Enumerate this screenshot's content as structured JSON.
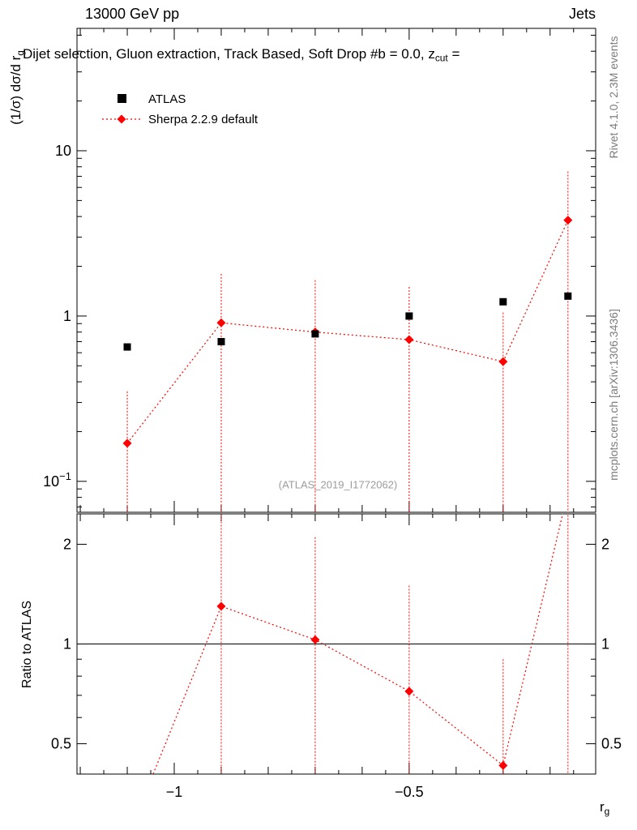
{
  "header": {
    "left": "13000 GeV pp",
    "right": "Jets"
  },
  "title": {
    "pre": "Dijet selection, Gluon extraction, Track Based, Soft Drop #b = 0.0, z",
    "sub": "cut",
    "post": " ="
  },
  "right_margin": {
    "top": "Rivet 4.1.0,  2.3M events",
    "bottom": "mcplots.cern.ch [arXiv:1306.3436]"
  },
  "watermark": "(ATLAS_2019_I1772062)",
  "axes": {
    "main_ylabel": {
      "main": "(1/σ) dσ/d r",
      "sub": "g"
    },
    "ratio_ylabel": "Ratio to ATLAS",
    "xlabel": {
      "main": "r",
      "sub": "g"
    }
  },
  "legend": [
    {
      "label": "ATLAS",
      "marker": "square",
      "color": "#000000"
    },
    {
      "label": "Sherpa 2.2.9 default",
      "marker": "diamond",
      "color": "#ff0000",
      "linestyle": "dotted"
    }
  ],
  "colors": {
    "data": "#000000",
    "mc": "#ff0000",
    "gray_text": "#7b7b7b",
    "watermark": "#9c9c9c"
  },
  "chart_data": {
    "type": "line",
    "title": "Dijet selection, Gluon extraction, Track Based, Soft Drop #b = 0.0, z_cut =",
    "xlabel": "r_g",
    "ylabel": "(1/sigma) dsigma/d r_g",
    "legend_position": "top-left",
    "grid": false,
    "xlim": [
      -1.207,
      -0.103
    ],
    "x": [
      -1.1,
      -0.9,
      -0.7,
      -0.5,
      -0.3,
      -0.162
    ],
    "xticks": [
      {
        "v": -1,
        "label": "−1"
      },
      {
        "v": -0.5,
        "label": "−0.5"
      }
    ],
    "main_panel": {
      "yscale": "log",
      "ylim": [
        0.065,
        55
      ],
      "yticks": [
        {
          "v": 10,
          "label": "10"
        },
        {
          "v": 1,
          "label": "1"
        },
        {
          "v": 0.1,
          "label": "10",
          "sup": "−1"
        }
      ],
      "series": [
        {
          "name": "ATLAS",
          "marker": "square",
          "color": "#000000",
          "values": [
            0.65,
            0.7,
            0.78,
            1.0,
            1.22,
            1.32
          ]
        },
        {
          "name": "Sherpa 2.2.9 default",
          "marker": "diamond",
          "color": "#ff0000",
          "linestyle": "dotted",
          "values": [
            0.17,
            0.91,
            0.8,
            0.72,
            0.53,
            3.8
          ],
          "err_hi": [
            0.35,
            1.8,
            1.65,
            1.5,
            1.05,
            7.5
          ],
          "err_lo": [
            0.001,
            0.001,
            0.001,
            0.001,
            0.001,
            0.001
          ]
        }
      ]
    },
    "ratio_panel": {
      "yscale": "log",
      "ylim": [
        0.405,
        2.47
      ],
      "yticks": [
        {
          "v": 2,
          "label": "2"
        },
        {
          "v": 1,
          "label": "1"
        },
        {
          "v": 0.5,
          "label": "0.5"
        }
      ],
      "refline": 1,
      "values": [
        0.26,
        1.3,
        1.03,
        0.72,
        0.43,
        2.88
      ],
      "err_hi": [
        null,
        3.0,
        2.1,
        1.5,
        0.9,
        3.0
      ],
      "err_lo": [
        null,
        0.3,
        0.3,
        0.3,
        0.3,
        0.3
      ]
    }
  }
}
